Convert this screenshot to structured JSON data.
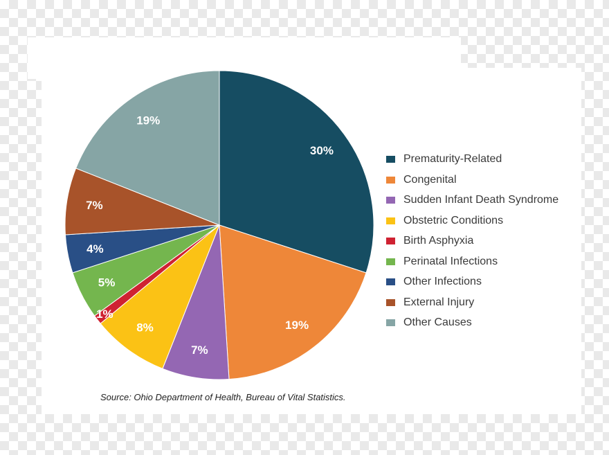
{
  "chart_data": {
    "type": "pie",
    "start_angle_deg": 0,
    "direction": "clockwise",
    "slices": [
      {
        "label": "Prematurity-Related",
        "value": 30,
        "display": "30%",
        "color": "#164d62"
      },
      {
        "label": "Congenital",
        "value": 19,
        "display": "19%",
        "color": "#ee8739"
      },
      {
        "label": "Sudden Infant Death Syndrome",
        "value": 7,
        "display": "7%",
        "color": "#9467b3"
      },
      {
        "label": "Obstetric Conditions",
        "value": 8,
        "display": "8%",
        "color": "#fbc215"
      },
      {
        "label": "Birth Asphyxia",
        "value": 1,
        "display": "1%",
        "color": "#cf2232"
      },
      {
        "label": "Perinatal Infections",
        "value": 5,
        "display": "5%",
        "color": "#74b64e"
      },
      {
        "label": "Other Infections",
        "value": 4,
        "display": "4%",
        "color": "#294f86"
      },
      {
        "label": "External Injury",
        "value": 7,
        "display": "7%",
        "color": "#a8532a"
      },
      {
        "label": "Other Causes",
        "value": 19,
        "display": "19%",
        "color": "#86a5a5"
      }
    ],
    "legend_placement": "right"
  },
  "source": "Source: Ohio Department of Health, Bureau of Vital Statistics."
}
